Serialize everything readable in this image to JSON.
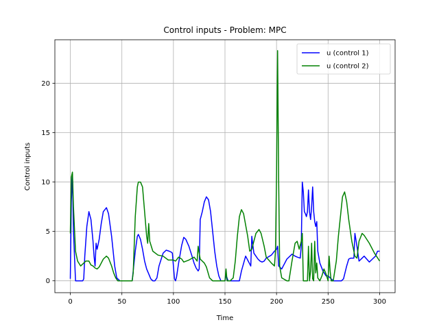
{
  "chart_data": {
    "type": "line",
    "title": "Control inputs - Problem: MPC",
    "xlabel": "Time",
    "ylabel": "Control inputs",
    "xlim": [
      -15,
      315
    ],
    "ylim": [
      -1.2,
      24.4
    ],
    "xticks": [
      0,
      50,
      100,
      150,
      200,
      250,
      300
    ],
    "yticks": [
      0,
      5,
      10,
      15,
      20
    ],
    "grid": true,
    "legend_position": "top-right",
    "series": [
      {
        "name": "u (control 1)",
        "color": "#0000ff",
        "x": [
          0,
          1,
          2,
          3,
          5,
          8,
          12,
          13,
          14,
          16,
          18,
          20,
          22,
          23,
          24,
          25,
          26,
          28,
          30,
          32,
          35,
          37,
          40,
          43,
          45,
          48,
          50,
          55,
          60,
          61,
          63,
          65,
          66,
          68,
          70,
          72,
          74,
          76,
          78,
          80,
          82,
          84,
          86,
          90,
          93,
          96,
          98,
          99,
          100,
          101,
          102,
          103,
          105,
          108,
          110,
          112,
          115,
          118,
          120,
          122,
          124,
          125,
          126,
          128,
          130,
          132,
          134,
          136,
          138,
          140,
          142,
          144,
          146,
          148,
          150,
          151,
          152,
          153,
          154,
          156,
          158,
          160,
          164,
          166,
          170,
          175,
          176,
          178,
          180,
          182,
          184,
          186,
          188,
          190,
          195,
          198,
          200,
          201,
          202,
          205,
          208,
          210,
          215,
          218,
          220,
          223,
          224,
          225,
          226,
          227,
          228,
          229,
          230,
          231,
          232,
          233,
          234,
          235,
          236,
          237,
          238,
          239,
          240,
          242,
          245,
          248,
          250,
          255,
          260,
          263,
          265,
          268,
          270,
          272,
          275,
          276,
          278,
          280,
          285,
          290,
          293,
          296,
          298,
          300
        ],
        "y": [
          0.2,
          8.0,
          10.8,
          5.0,
          0.0,
          0.0,
          0.0,
          0.2,
          2.5,
          5.5,
          7.0,
          6.2,
          4.0,
          2.5,
          1.5,
          3.8,
          3.2,
          4.2,
          5.8,
          7.0,
          7.4,
          6.8,
          4.5,
          1.5,
          0.3,
          0.0,
          0.0,
          0.0,
          0.0,
          1.0,
          3.0,
          4.5,
          4.7,
          4.2,
          3.2,
          2.0,
          1.2,
          0.7,
          0.2,
          0.0,
          0.0,
          0.3,
          1.5,
          2.8,
          3.1,
          3.0,
          2.9,
          2.8,
          1.5,
          0.2,
          0.0,
          0.4,
          1.8,
          3.6,
          4.4,
          4.2,
          3.5,
          2.5,
          1.8,
          1.3,
          1.0,
          1.2,
          6.2,
          7.0,
          8.0,
          8.5,
          8.2,
          7.0,
          5.0,
          3.0,
          1.5,
          0.5,
          0.0,
          0.0,
          0.0,
          0.5,
          0.3,
          0.0,
          0.0,
          0.0,
          0.0,
          0.0,
          0.0,
          1.0,
          2.5,
          1.5,
          4.5,
          2.8,
          2.5,
          2.2,
          2.0,
          1.9,
          2.0,
          2.3,
          2.6,
          3.0,
          3.2,
          3.5,
          1.5,
          1.2,
          1.8,
          2.2,
          2.7,
          2.5,
          2.4,
          2.3,
          3.5,
          10.0,
          9.0,
          7.0,
          6.8,
          6.5,
          7.0,
          9.2,
          7.0,
          6.2,
          7.5,
          9.5,
          7.0,
          6.0,
          5.5,
          6.0,
          3.0,
          1.8,
          1.0,
          0.5,
          0.5,
          0.0,
          0.0,
          0.0,
          0.2,
          1.5,
          2.2,
          2.3,
          2.3,
          4.8,
          3.5,
          2.0,
          2.5,
          1.9,
          2.2,
          2.5,
          3.0,
          3.0
        ]
      },
      {
        "name": "u (control 2)",
        "color": "#008000",
        "x": [
          0,
          1,
          2,
          3,
          5,
          7,
          10,
          13,
          15,
          18,
          20,
          22,
          24,
          26,
          28,
          30,
          32,
          35,
          37,
          40,
          42,
          44,
          46,
          50,
          55,
          60,
          61,
          63,
          65,
          66,
          68,
          70,
          72,
          74,
          75,
          76,
          77,
          80,
          85,
          90,
          95,
          100,
          102,
          105,
          108,
          110,
          115,
          120,
          123,
          124,
          125,
          126,
          128,
          130,
          132,
          135,
          138,
          140,
          142,
          146,
          150,
          151,
          152,
          155,
          158,
          160,
          162,
          164,
          166,
          168,
          172,
          174,
          176,
          180,
          183,
          185,
          188,
          190,
          195,
          198,
          199,
          200,
          201,
          202,
          203,
          205,
          210,
          212,
          215,
          218,
          220,
          222,
          224,
          225,
          226,
          228,
          230,
          231,
          232,
          233,
          234,
          235,
          236,
          237,
          238,
          239,
          240,
          242,
          244,
          246,
          248,
          250,
          251,
          252,
          253,
          255,
          258,
          260,
          262,
          264,
          266,
          268,
          270,
          273,
          276,
          278,
          280,
          283,
          285,
          290,
          295,
          300
        ],
        "y": [
          4.8,
          10.5,
          11.0,
          7.5,
          3.0,
          2.0,
          1.5,
          1.8,
          2.0,
          2.0,
          1.6,
          1.5,
          1.3,
          1.2,
          1.4,
          1.8,
          2.2,
          2.5,
          2.3,
          1.5,
          0.8,
          0.3,
          0.0,
          0.0,
          0.0,
          0.0,
          0.8,
          6.5,
          9.5,
          10.0,
          10.0,
          9.5,
          7.0,
          4.5,
          3.8,
          5.8,
          4.0,
          3.0,
          2.6,
          2.5,
          2.1,
          2.1,
          2.0,
          2.4,
          2.2,
          1.9,
          2.1,
          2.4,
          2.0,
          3.5,
          2.8,
          2.2,
          2.0,
          1.8,
          1.4,
          0.3,
          0.0,
          0.0,
          0.0,
          0.0,
          0.0,
          1.2,
          0.0,
          0.0,
          0.3,
          2.0,
          4.5,
          6.5,
          7.2,
          6.8,
          4.5,
          3.0,
          3.2,
          4.8,
          5.2,
          4.8,
          3.5,
          2.4,
          1.8,
          1.5,
          3.0,
          11.0,
          23.3,
          10.5,
          1.5,
          0.3,
          0.0,
          0.0,
          2.0,
          3.8,
          4.0,
          3.2,
          4.0,
          4.8,
          0.0,
          0.0,
          0.0,
          3.5,
          0.0,
          1.0,
          3.8,
          0.2,
          0.0,
          4.0,
          0.8,
          1.8,
          0.3,
          0.0,
          0.5,
          1.2,
          0.7,
          0.0,
          2.5,
          1.0,
          0.0,
          0.0,
          2.0,
          4.5,
          6.5,
          8.5,
          9.0,
          8.0,
          6.2,
          4.0,
          2.5,
          2.3,
          4.0,
          4.8,
          4.6,
          3.8,
          2.8,
          2.0
        ]
      }
    ]
  }
}
